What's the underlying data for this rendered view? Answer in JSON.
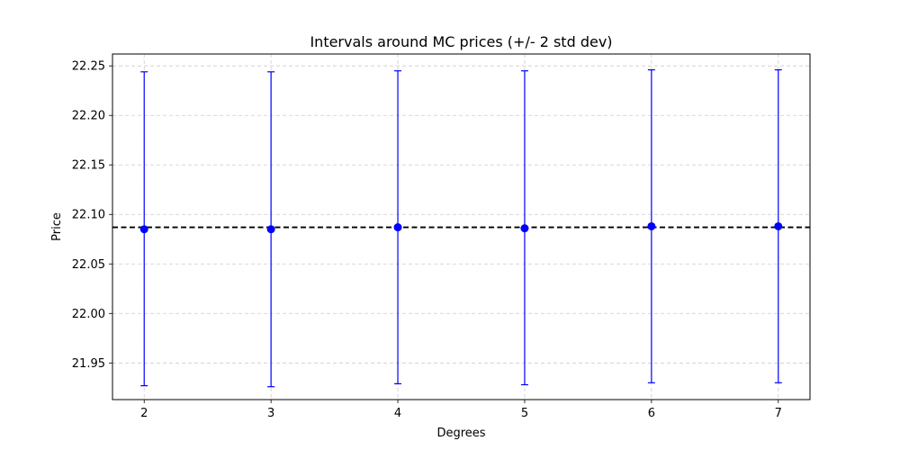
{
  "chart_data": {
    "type": "errorbar",
    "title": "Intervals around MC prices (+/- 2 std dev)",
    "xlabel": "Degrees",
    "ylabel": "Price",
    "x": [
      2,
      3,
      4,
      5,
      6,
      7
    ],
    "x_tick_labels": [
      "2",
      "3",
      "4",
      "5",
      "6",
      "7"
    ],
    "y_ticks": [
      21.95,
      22.0,
      22.05,
      22.1,
      22.15,
      22.2,
      22.25
    ],
    "y_tick_labels": [
      "21.95",
      "22.00",
      "22.05",
      "22.10",
      "22.15",
      "22.20",
      "22.25"
    ],
    "xlim": [
      1.75,
      7.25
    ],
    "ylim": [
      21.913,
      22.262
    ],
    "series": [
      {
        "values": [
          22.085,
          22.085,
          22.087,
          22.086,
          22.088,
          22.088
        ],
        "lower": [
          21.927,
          21.926,
          21.929,
          21.928,
          21.93,
          21.93
        ],
        "upper": [
          22.244,
          22.244,
          22.245,
          22.245,
          22.246,
          22.246
        ],
        "color": "#0000ff",
        "marker": "circle"
      }
    ],
    "reference_line": {
      "y": 22.087,
      "color": "#000000",
      "style": "dashed"
    },
    "grid": true,
    "grid_color": "#cccccc",
    "grid_style": "dashed"
  }
}
